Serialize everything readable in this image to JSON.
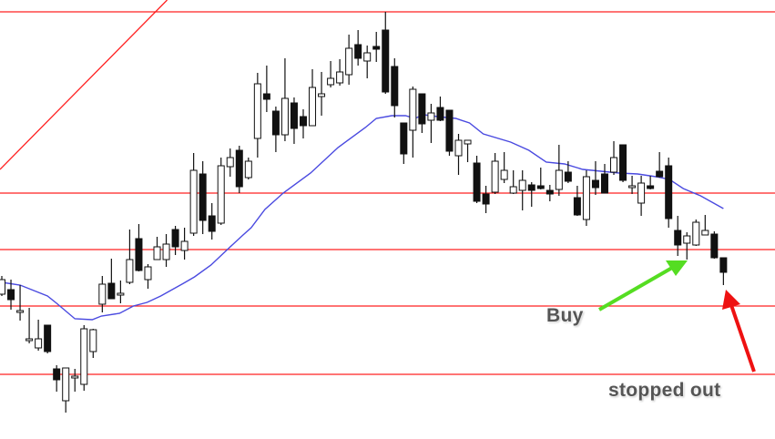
{
  "chart_data": {
    "type": "candlestick",
    "title": "",
    "xlabel": "",
    "ylabel": "",
    "grid": false,
    "colors": {
      "bull_body": "#ffffff",
      "bear_body": "#111111",
      "wick": "#111111",
      "levels": "#ff2020",
      "moving_average": "#4a4ae0",
      "buy_arrow": "#55dd22",
      "stop_arrow": "#ee1111"
    },
    "candles_ohlc": [
      [
        159,
        179,
        157,
        175
      ],
      [
        164,
        175,
        142,
        153
      ],
      [
        141,
        169,
        130,
        141
      ],
      [
        110,
        144,
        105,
        110
      ],
      [
        100,
        131,
        97,
        110
      ],
      [
        125,
        125,
        94,
        96
      ],
      [
        77,
        81,
        52,
        65
      ],
      [
        42,
        78,
        29,
        78
      ],
      [
        69,
        77,
        52,
        69
      ],
      [
        60,
        125,
        53,
        121
      ],
      [
        96,
        121,
        89,
        120
      ],
      [
        148,
        179,
        139,
        170
      ],
      [
        171,
        198,
        154,
        154
      ],
      [
        160,
        174,
        149,
        160
      ],
      [
        172,
        230,
        170,
        197
      ],
      [
        220,
        236,
        184,
        185
      ],
      [
        175,
        192,
        165,
        189
      ],
      [
        197,
        222,
        197,
        211
      ],
      [
        197,
        225,
        189,
        214
      ],
      [
        230,
        234,
        202,
        211
      ],
      [
        207,
        232,
        197,
        217
      ],
      [
        226,
        314,
        223,
        295
      ],
      [
        291,
        305,
        225,
        240
      ],
      [
        245,
        259,
        219,
        228
      ],
      [
        237,
        309,
        235,
        300
      ],
      [
        299,
        319,
        288,
        309
      ],
      [
        317,
        322,
        270,
        277
      ],
      [
        287,
        309,
        285,
        305
      ],
      [
        330,
        402,
        309,
        390
      ],
      [
        379,
        410,
        359,
        373
      ],
      [
        360,
        365,
        315,
        334
      ],
      [
        334,
        418,
        327,
        374
      ],
      [
        369,
        375,
        324,
        341
      ],
      [
        354,
        362,
        330,
        344
      ],
      [
        344,
        406,
        344,
        386
      ],
      [
        376,
        403,
        355,
        379
      ],
      [
        389,
        415,
        386,
        396
      ],
      [
        391,
        417,
        388,
        403
      ],
      [
        400,
        444,
        389,
        429
      ],
      [
        433,
        449,
        410,
        418
      ],
      [
        415,
        432,
        396,
        424
      ],
      [
        431,
        447,
        414,
        428
      ],
      [
        449,
        469,
        379,
        381
      ],
      [
        409,
        418,
        353,
        366
      ],
      [
        347,
        347,
        302,
        313
      ],
      [
        339,
        387,
        309,
        384
      ],
      [
        379,
        379,
        336,
        346
      ],
      [
        350,
        368,
        325,
        358
      ],
      [
        364,
        376,
        349,
        350
      ],
      [
        361,
        361,
        311,
        316
      ],
      [
        311,
        335,
        290,
        328
      ],
      [
        324,
        328,
        304,
        328
      ],
      [
        303,
        311,
        259,
        261
      ],
      [
        269,
        278,
        248,
        258
      ],
      [
        271,
        314,
        269,
        305
      ],
      [
        285,
        315,
        281,
        295
      ],
      [
        270,
        295,
        269,
        277
      ],
      [
        273,
        295,
        251,
        284
      ],
      [
        279,
        282,
        255,
        273
      ],
      [
        278,
        298,
        274,
        275
      ],
      [
        273,
        279,
        261,
        269
      ],
      [
        274,
        323,
        267,
        295
      ],
      [
        293,
        305,
        281,
        283
      ],
      [
        265,
        278,
        245,
        246
      ],
      [
        241,
        295,
        234,
        288
      ],
      [
        284,
        305,
        268,
        276
      ],
      [
        291,
        302,
        270,
        270
      ],
      [
        293,
        327,
        290,
        309
      ],
      [
        323,
        323,
        282,
        284
      ],
      [
        276,
        289,
        269,
        278
      ],
      [
        259,
        289,
        245,
        281
      ],
      [
        278,
        289,
        274,
        275
      ],
      [
        294,
        315,
        287,
        288
      ],
      [
        300,
        309,
        232,
        242
      ],
      [
        229,
        245,
        201,
        213
      ],
      [
        215,
        227,
        197,
        223
      ],
      [
        213,
        241,
        212,
        238
      ],
      [
        224,
        246,
        224,
        229
      ],
      [
        225,
        228,
        198,
        199
      ],
      [
        199,
        199,
        169,
        183
      ]
    ],
    "horizontal_levels": [
      469,
      270,
      208,
      146,
      71
    ],
    "trendline": [
      [
        0,
        296
      ],
      [
        18.1,
        482
      ]
    ],
    "moving_average": [
      [
        0,
        172
      ],
      [
        2,
        169
      ],
      [
        5,
        157
      ],
      [
        6,
        149
      ],
      [
        8,
        132
      ],
      [
        9.9,
        131
      ],
      [
        10.9,
        135
      ],
      [
        12.9,
        138
      ],
      [
        14.4,
        146
      ],
      [
        15.9,
        150
      ],
      [
        17.4,
        157
      ],
      [
        19.9,
        171
      ],
      [
        21.1,
        178
      ],
      [
        22.9,
        191
      ],
      [
        24.9,
        210
      ],
      [
        26.3,
        223
      ],
      [
        27.3,
        232
      ],
      [
        28.8,
        252
      ],
      [
        30.8,
        270
      ],
      [
        33.8,
        292
      ],
      [
        36.8,
        320
      ],
      [
        39.8,
        342
      ],
      [
        41,
        352
      ],
      [
        42.7,
        355
      ],
      [
        44.2,
        355
      ],
      [
        45.2,
        352
      ],
      [
        46.2,
        356
      ],
      [
        47.7,
        354
      ],
      [
        49.7,
        352
      ],
      [
        51.2,
        347
      ],
      [
        52.7,
        335
      ],
      [
        55.7,
        326
      ],
      [
        57.7,
        317
      ],
      [
        59.6,
        304
      ],
      [
        61.6,
        302
      ],
      [
        63.6,
        296
      ],
      [
        65.6,
        294
      ],
      [
        67.6,
        292
      ],
      [
        69.6,
        291
      ],
      [
        71.6,
        288
      ],
      [
        73.1,
        285
      ],
      [
        74.6,
        275
      ],
      [
        76.5,
        267
      ],
      [
        79,
        253
      ]
    ],
    "annotations": {
      "buy": "Buy",
      "stop": "stopped out"
    }
  }
}
